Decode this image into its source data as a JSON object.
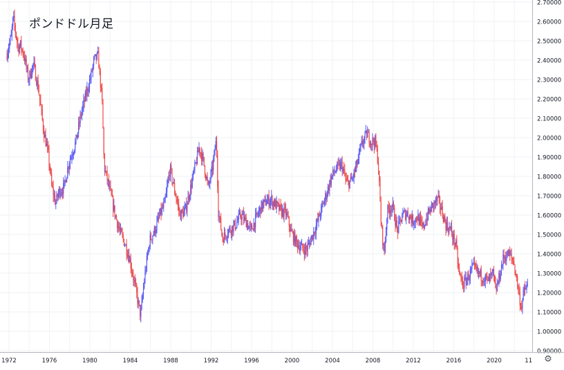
{
  "chart_data": {
    "type": "candlestick",
    "title": "ポンドドル月足",
    "xlabel": "",
    "ylabel": "",
    "xlim": [
      1971.7,
      2023.5
    ],
    "ylim": [
      0.9,
      2.7
    ],
    "grid": true,
    "up_color": "#5b5bf5",
    "down_color": "#ef4a4a",
    "y_ticks": [
      "0.90000",
      "1.00000",
      "1.10000",
      "1.20000",
      "1.30000",
      "1.40000",
      "1.50000",
      "1.60000",
      "1.70000",
      "1.80000",
      "1.90000",
      "2.00000",
      "2.10000",
      "2.20000",
      "2.30000",
      "2.40000",
      "2.50000",
      "2.60000",
      "2.70000"
    ],
    "x_ticks": [
      "1972",
      "1976",
      "1980",
      "1984",
      "1988",
      "1992",
      "1996",
      "2000",
      "2004",
      "2008",
      "2012",
      "2016",
      "2020",
      "11"
    ],
    "x_tick_years": [
      1972,
      1976,
      1980,
      1984,
      1988,
      1992,
      1996,
      2000,
      2004,
      2008,
      2012,
      2016,
      2020,
      2023.4
    ],
    "price_path": {
      "x": [
        1971.8,
        1972.3,
        1972.5,
        1973.0,
        1973.2,
        1973.6,
        1974.0,
        1974.5,
        1975.0,
        1975.5,
        1976.0,
        1976.3,
        1976.7,
        1977.0,
        1977.5,
        1978.0,
        1978.7,
        1979.2,
        1979.7,
        1980.2,
        1980.5,
        1980.9,
        1981.3,
        1981.5,
        1982.0,
        1982.5,
        1983.0,
        1983.5,
        1984.0,
        1984.6,
        1985.1,
        1985.5,
        1986.0,
        1986.5,
        1987.0,
        1987.5,
        1988.0,
        1988.5,
        1989.0,
        1989.5,
        1990.0,
        1990.5,
        1990.9,
        1991.3,
        1991.8,
        1992.2,
        1992.6,
        1992.8,
        1993.2,
        1993.8,
        1994.5,
        1995.0,
        1995.5,
        1996.0,
        1996.5,
        1997.0,
        1997.5,
        1998.0,
        1998.5,
        1999.0,
        1999.5,
        2000.0,
        2000.5,
        2001.0,
        2001.5,
        2002.0,
        2002.5,
        2003.0,
        2003.5,
        2004.0,
        2004.5,
        2005.0,
        2005.5,
        2006.0,
        2006.5,
        2007.0,
        2007.5,
        2007.9,
        2008.3,
        2008.6,
        2008.9,
        2009.2,
        2009.5,
        2010.0,
        2010.5,
        2011.0,
        2011.5,
        2012.0,
        2012.5,
        2013.0,
        2013.5,
        2014.0,
        2014.5,
        2014.8,
        2015.3,
        2015.8,
        2016.3,
        2016.6,
        2017.0,
        2017.5,
        2018.0,
        2018.5,
        2019.0,
        2019.5,
        2020.0,
        2020.2,
        2020.5,
        2021.0,
        2021.5,
        2022.0,
        2022.4,
        2022.75,
        2023.0,
        2023.3
      ],
      "y": [
        2.42,
        2.52,
        2.62,
        2.46,
        2.48,
        2.42,
        2.3,
        2.38,
        2.25,
        2.04,
        1.9,
        1.75,
        1.66,
        1.72,
        1.74,
        1.87,
        1.98,
        2.12,
        2.22,
        2.32,
        2.4,
        2.42,
        2.18,
        1.85,
        1.74,
        1.62,
        1.52,
        1.46,
        1.38,
        1.22,
        1.08,
        1.28,
        1.47,
        1.52,
        1.6,
        1.66,
        1.84,
        1.72,
        1.6,
        1.62,
        1.73,
        1.85,
        1.95,
        1.88,
        1.74,
        1.84,
        1.99,
        1.62,
        1.48,
        1.52,
        1.55,
        1.6,
        1.57,
        1.52,
        1.58,
        1.64,
        1.67,
        1.68,
        1.65,
        1.62,
        1.61,
        1.51,
        1.46,
        1.43,
        1.42,
        1.48,
        1.55,
        1.63,
        1.71,
        1.8,
        1.84,
        1.86,
        1.76,
        1.78,
        1.86,
        1.97,
        2.02,
        1.98,
        1.98,
        1.88,
        1.55,
        1.4,
        1.62,
        1.65,
        1.52,
        1.6,
        1.61,
        1.57,
        1.59,
        1.53,
        1.6,
        1.65,
        1.68,
        1.64,
        1.55,
        1.52,
        1.44,
        1.3,
        1.24,
        1.28,
        1.33,
        1.3,
        1.28,
        1.26,
        1.3,
        1.2,
        1.26,
        1.38,
        1.4,
        1.36,
        1.24,
        1.12,
        1.2,
        1.23
      ]
    }
  }
}
